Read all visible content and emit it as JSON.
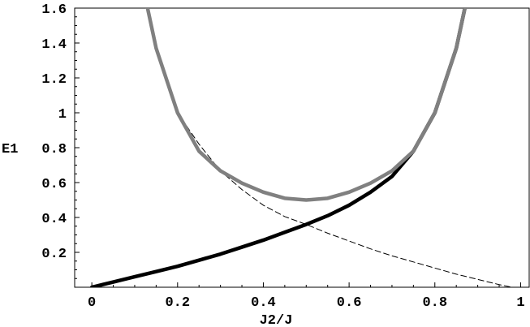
{
  "chart_data": {
    "type": "line",
    "title": "",
    "xlabel": "J2/J",
    "ylabel": "E1",
    "xlim": [
      -0.04,
      1.02
    ],
    "ylim": [
      0.0,
      1.6
    ],
    "grid": false,
    "legend": "none",
    "x_ticks": [
      0,
      0.2,
      0.4,
      0.6,
      0.8,
      1
    ],
    "x_tick_labels": [
      "0",
      "0.2",
      "0.4",
      "0.6",
      "0.8",
      "1"
    ],
    "y_ticks": [
      0.2,
      0.4,
      0.6,
      0.8,
      1.0,
      1.2,
      1.4,
      1.6
    ],
    "y_tick_labels": [
      "0.2",
      "0.4",
      "0.6",
      "0.8",
      "1",
      "1.2",
      "1.4",
      "1.6"
    ],
    "series": [
      {
        "style": "solid-black-thick",
        "color": "#000000",
        "x": [
          0.0,
          0.05,
          0.1,
          0.15,
          0.2,
          0.25,
          0.3,
          0.35,
          0.4,
          0.45,
          0.5,
          0.55,
          0.6,
          0.65,
          0.7,
          0.75,
          0.8,
          0.85,
          0.87
        ],
        "y": [
          0.0,
          0.03,
          0.06,
          0.09,
          0.12,
          0.155,
          0.19,
          0.23,
          0.27,
          0.315,
          0.36,
          0.41,
          0.47,
          0.545,
          0.635,
          0.78,
          1.0,
          1.37,
          1.6
        ]
      },
      {
        "style": "solid-gray-thick",
        "color": "#808080",
        "x": [
          0.13,
          0.15,
          0.2,
          0.25,
          0.3,
          0.35,
          0.4,
          0.45,
          0.5,
          0.55,
          0.6,
          0.65,
          0.7,
          0.75,
          0.8,
          0.85,
          0.87
        ],
        "y": [
          1.6,
          1.37,
          1.0,
          0.78,
          0.667,
          0.597,
          0.545,
          0.51,
          0.5,
          0.51,
          0.545,
          0.597,
          0.667,
          0.78,
          1.0,
          1.37,
          1.6
        ]
      },
      {
        "style": "dashed-black-thin",
        "color": "#000000",
        "x": [
          0.13,
          0.15,
          0.2,
          0.25,
          0.3,
          0.35,
          0.4,
          0.45,
          0.5,
          0.55,
          0.6,
          0.65,
          0.7,
          0.75,
          0.8,
          0.85,
          0.9,
          0.95,
          0.98
        ],
        "y": [
          1.6,
          1.37,
          1.0,
          0.82,
          0.667,
          0.56,
          0.47,
          0.405,
          0.36,
          0.31,
          0.265,
          0.22,
          0.18,
          0.145,
          0.11,
          0.075,
          0.045,
          0.015,
          0.0
        ]
      }
    ]
  }
}
